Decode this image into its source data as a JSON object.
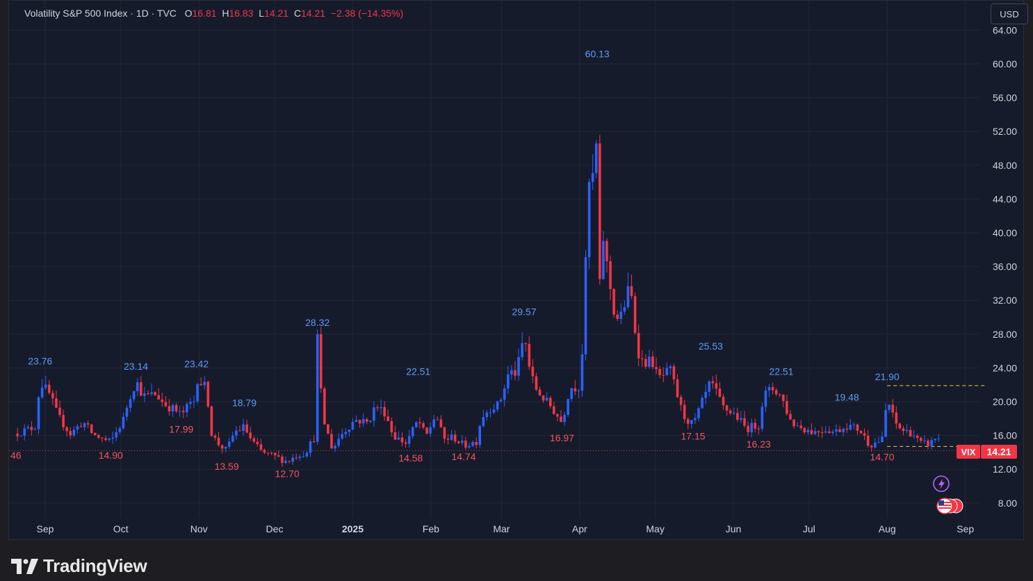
{
  "legend": {
    "symbol_name": "Volatility S&P 500 Index · 1D · TVC",
    "open_label": "O",
    "open": "16.81",
    "high_label": "H",
    "high": "16.83",
    "low_label": "L",
    "low": "14.21",
    "close_label": "C",
    "close": "14.21",
    "change": "−2.38 (−14.35%)"
  },
  "currency_button": "USD",
  "price_tag": {
    "ticker": "VIX",
    "value": "14.21"
  },
  "left_cut_label": "46",
  "brand": {
    "name": "TradingView"
  },
  "colors": {
    "background": "#161b2b",
    "grid": "#232838",
    "up": "#2962ff",
    "down": "#f23645",
    "label_high": "#5b9cf6",
    "label_low": "#f7525f",
    "text": "#d1d4dc",
    "dashed_yellow": "#e8d44d"
  },
  "icons": [
    "lightning-icon",
    "us-flag-icon",
    "tradingview-logo-icon"
  ],
  "chart_data": {
    "type": "candlestick",
    "title": "",
    "ylim": [
      6,
      65
    ],
    "y_ticks": [
      "64.00",
      "60.00",
      "56.00",
      "52.00",
      "48.00",
      "44.00",
      "40.00",
      "36.00",
      "32.00",
      "28.00",
      "24.00",
      "20.00",
      "16.00",
      "12.00",
      "8.00"
    ],
    "x_ticks": [
      "Sep",
      "Oct",
      "Nov",
      "Dec",
      "2025",
      "Feb",
      "Mar",
      "Apr",
      "May",
      "Jun",
      "Jul",
      "Aug",
      "Sep"
    ],
    "x_tick_dates": [
      "2024-09-01",
      "2024-10-01",
      "2024-11-01",
      "2024-12-01",
      "2025-01-01",
      "2025-02-01",
      "2025-03-01",
      "2025-04-01",
      "2025-05-01",
      "2025-06-01",
      "2025-07-01",
      "2025-08-01",
      "2025-09-01"
    ],
    "last_price": 14.21,
    "dashed_levels": [
      {
        "value": 21.9,
        "from": "2025-08-01"
      },
      {
        "value": 14.7,
        "from": "2025-08-01"
      }
    ],
    "labels": [
      {
        "date": "2024-08-30",
        "value": "23.76",
        "kind": "high"
      },
      {
        "date": "2024-10-07",
        "value": "23.14",
        "kind": "high"
      },
      {
        "date": "2024-10-31",
        "value": "23.42",
        "kind": "high"
      },
      {
        "date": "2024-11-19",
        "value": "18.79",
        "kind": "high"
      },
      {
        "date": "2024-12-18",
        "value": "28.32",
        "kind": "high"
      },
      {
        "date": "2025-01-27",
        "value": "22.51",
        "kind": "high"
      },
      {
        "date": "2025-03-10",
        "value": "29.57",
        "kind": "high"
      },
      {
        "date": "2025-04-08",
        "value": "60.13",
        "kind": "high"
      },
      {
        "date": "2025-05-23",
        "value": "25.53",
        "kind": "high"
      },
      {
        "date": "2025-06-20",
        "value": "22.51",
        "kind": "high"
      },
      {
        "date": "2025-07-16",
        "value": "19.48",
        "kind": "high"
      },
      {
        "date": "2025-08-01",
        "value": "21.90",
        "kind": "high"
      },
      {
        "date": "2024-09-27",
        "value": "14.90",
        "kind": "low"
      },
      {
        "date": "2024-10-25",
        "value": "17.99",
        "kind": "low"
      },
      {
        "date": "2024-11-12",
        "value": "13.59",
        "kind": "low"
      },
      {
        "date": "2024-12-06",
        "value": "12.70",
        "kind": "low"
      },
      {
        "date": "2025-01-24",
        "value": "14.58",
        "kind": "low"
      },
      {
        "date": "2025-02-14",
        "value": "14.74",
        "kind": "low"
      },
      {
        "date": "2025-03-25",
        "value": "16.97",
        "kind": "low"
      },
      {
        "date": "2025-05-16",
        "value": "17.15",
        "kind": "low"
      },
      {
        "date": "2025-06-11",
        "value": "16.23",
        "kind": "low"
      },
      {
        "date": "2025-07-30",
        "value": "14.70",
        "kind": "low"
      }
    ],
    "close_path": [
      [
        "2024-08-21",
        16.3
      ],
      [
        "2024-08-26",
        16.8
      ],
      [
        "2024-08-28",
        17.1
      ],
      [
        "2024-08-30",
        22.4
      ],
      [
        "2024-09-03",
        20.7
      ],
      [
        "2024-09-06",
        18.3
      ],
      [
        "2024-09-11",
        16.2
      ],
      [
        "2024-09-16",
        17.6
      ],
      [
        "2024-09-20",
        16.1
      ],
      [
        "2024-09-25",
        15.4
      ],
      [
        "2024-09-27",
        15.2
      ],
      [
        "2024-10-02",
        17.9
      ],
      [
        "2024-10-04",
        20.1
      ],
      [
        "2024-10-07",
        22.5
      ],
      [
        "2024-10-10",
        20.6
      ],
      [
        "2024-10-15",
        20.9
      ],
      [
        "2024-10-18",
        19.8
      ],
      [
        "2024-10-23",
        18.9
      ],
      [
        "2024-10-25",
        18.4
      ],
      [
        "2024-10-28",
        19.6
      ],
      [
        "2024-10-30",
        20.1
      ],
      [
        "2024-10-31",
        22.9
      ],
      [
        "2024-11-04",
        21.5
      ],
      [
        "2024-11-06",
        16.3
      ],
      [
        "2024-11-08",
        15.2
      ],
      [
        "2024-11-12",
        14.2
      ],
      [
        "2024-11-15",
        16.4
      ],
      [
        "2024-11-19",
        17.0
      ],
      [
        "2024-11-22",
        15.3
      ],
      [
        "2024-11-26",
        14.0
      ],
      [
        "2024-12-02",
        13.4
      ],
      [
        "2024-12-06",
        12.9
      ],
      [
        "2024-12-10",
        13.7
      ],
      [
        "2024-12-13",
        13.9
      ],
      [
        "2024-12-17",
        15.9
      ],
      [
        "2024-12-18",
        27.5
      ],
      [
        "2024-12-20",
        18.2
      ],
      [
        "2024-12-24",
        14.3
      ],
      [
        "2024-12-27",
        16.0
      ],
      [
        "2025-01-02",
        17.9
      ],
      [
        "2025-01-07",
        17.5
      ],
      [
        "2025-01-10",
        19.5
      ],
      [
        "2025-01-14",
        18.7
      ],
      [
        "2025-01-17",
        16.0
      ],
      [
        "2025-01-22",
        15.1
      ],
      [
        "2025-01-27",
        17.8
      ],
      [
        "2025-01-30",
        15.8
      ],
      [
        "2025-02-03",
        18.6
      ],
      [
        "2025-02-06",
        15.5
      ],
      [
        "2025-02-10",
        15.8
      ],
      [
        "2025-02-14",
        14.8
      ],
      [
        "2025-02-19",
        15.3
      ],
      [
        "2025-02-21",
        18.2
      ],
      [
        "2025-02-25",
        19.4
      ],
      [
        "2025-02-28",
        19.6
      ],
      [
        "2025-03-04",
        23.5
      ],
      [
        "2025-03-07",
        23.4
      ],
      [
        "2025-03-10",
        27.9
      ],
      [
        "2025-03-12",
        24.2
      ],
      [
        "2025-03-14",
        21.8
      ],
      [
        "2025-03-19",
        19.9
      ],
      [
        "2025-03-21",
        19.3
      ],
      [
        "2025-03-25",
        17.5
      ],
      [
        "2025-03-28",
        21.7
      ],
      [
        "2025-04-01",
        21.8
      ],
      [
        "2025-04-03",
        30.0
      ],
      [
        "2025-04-04",
        45.3
      ],
      [
        "2025-04-07",
        46.9
      ],
      [
        "2025-04-08",
        52.3
      ],
      [
        "2025-04-09",
        33.6
      ],
      [
        "2025-04-10",
        40.7
      ],
      [
        "2025-04-11",
        37.6
      ],
      [
        "2025-04-15",
        30.1
      ],
      [
        "2025-04-17",
        29.7
      ],
      [
        "2025-04-21",
        33.8
      ],
      [
        "2025-04-23",
        28.5
      ],
      [
        "2025-04-25",
        24.8
      ],
      [
        "2025-04-30",
        24.7
      ],
      [
        "2025-05-02",
        22.7
      ],
      [
        "2025-05-07",
        23.6
      ],
      [
        "2025-05-12",
        18.4
      ],
      [
        "2025-05-16",
        17.2
      ],
      [
        "2025-05-21",
        20.9
      ],
      [
        "2025-05-23",
        22.3
      ],
      [
        "2025-05-28",
        19.3
      ],
      [
        "2025-06-02",
        18.4
      ],
      [
        "2025-06-06",
        16.8
      ],
      [
        "2025-06-11",
        17.3
      ],
      [
        "2025-06-13",
        20.8
      ],
      [
        "2025-06-17",
        21.6
      ],
      [
        "2025-06-20",
        20.6
      ],
      [
        "2025-06-24",
        17.5
      ],
      [
        "2025-06-30",
        16.7
      ],
      [
        "2025-07-03",
        16.4
      ],
      [
        "2025-07-08",
        16.8
      ],
      [
        "2025-07-11",
        16.4
      ],
      [
        "2025-07-16",
        17.2
      ],
      [
        "2025-07-21",
        16.7
      ],
      [
        "2025-07-25",
        14.9
      ],
      [
        "2025-07-30",
        15.5
      ],
      [
        "2025-08-01",
        20.4
      ],
      [
        "2025-08-04",
        17.5
      ],
      [
        "2025-08-07",
        16.6
      ],
      [
        "2025-08-11",
        16.3
      ],
      [
        "2025-08-14",
        15.0
      ],
      [
        "2025-08-18",
        15.0
      ],
      [
        "2025-08-20",
        15.7
      ],
      [
        "2025-08-21",
        16.6
      ],
      [
        "2025-08-22",
        14.21
      ]
    ]
  }
}
